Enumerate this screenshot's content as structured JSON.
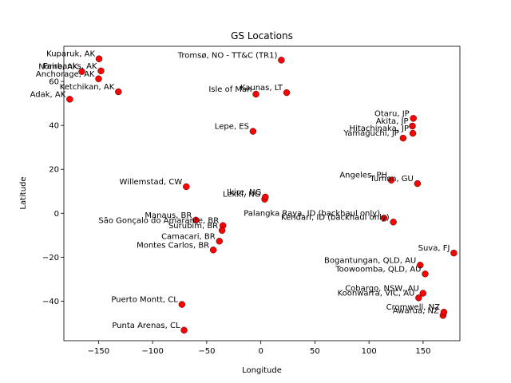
{
  "chart_data": {
    "type": "scatter",
    "title": "GS Locations",
    "xlabel": "Longitude",
    "ylabel": "Latitude",
    "xlim": [
      -182,
      184
    ],
    "ylim": [
      -58,
      76
    ],
    "xticks": [
      -150,
      -100,
      -50,
      0,
      50,
      100,
      150
    ],
    "xtick_labels": [
      "−150",
      "−100",
      "−50",
      "0",
      "50",
      "100",
      "150"
    ],
    "yticks": [
      -40,
      -20,
      0,
      20,
      40,
      60
    ],
    "ytick_labels": [
      "−40",
      "−20",
      "0",
      "20",
      "40",
      "60"
    ],
    "grid": false,
    "marker_color": "#ff0000",
    "marker_edge": "#000000",
    "points": [
      {
        "label": "Kuparuk, AK",
        "x": -149.5,
        "y": 70.3
      },
      {
        "label": "Fairbanks, AK",
        "x": -147.7,
        "y": 64.8
      },
      {
        "label": "Nome, AK",
        "x": -165.4,
        "y": 64.5
      },
      {
        "label": "Anchorage, AK",
        "x": -149.9,
        "y": 61.2
      },
      {
        "label": "Ketchikan, AK",
        "x": -131.6,
        "y": 55.3
      },
      {
        "label": "Tromsø, NO - TT&C (TR1)",
        "x": 19.0,
        "y": 69.7
      },
      {
        "label": "Isle of Man",
        "x": -4.5,
        "y": 54.2
      },
      {
        "label": "Kaunas, LT",
        "x": 23.9,
        "y": 54.9
      },
      {
        "label": "Adak, AK",
        "x": -176.6,
        "y": 51.9
      },
      {
        "label": "Otaru, JP",
        "x": 141.0,
        "y": 43.2
      },
      {
        "label": "Akita, JP",
        "x": 140.1,
        "y": 39.7
      },
      {
        "label": "Hitachinaka, JP",
        "x": 140.5,
        "y": 36.4
      },
      {
        "label": "Yamaguchi, JP",
        "x": 131.5,
        "y": 34.2
      },
      {
        "label": "Lepe, ES",
        "x": -7.2,
        "y": 37.3
      },
      {
        "label": "Angeles, PH",
        "x": 120.6,
        "y": 15.1
      },
      {
        "label": "Tumon, GU",
        "x": 144.8,
        "y": 13.5
      },
      {
        "label": "Willemstad, CW",
        "x": -68.9,
        "y": 12.1
      },
      {
        "label": "Lekki, NG",
        "x": 3.6,
        "y": 6.4
      },
      {
        "label": "Ikire, NG",
        "x": 4.2,
        "y": 7.4
      },
      {
        "label": "Manaus, BR",
        "x": -60.0,
        "y": -3.1
      },
      {
        "label": "Palangka Raya, ID (backhaul only)",
        "x": 113.9,
        "y": -2.2
      },
      {
        "label": "Kendari, ID (backhaul only)",
        "x": 122.5,
        "y": -4.0
      },
      {
        "label": "São Gonçalo do Amarante, BR",
        "x": -35.0,
        "y": -5.6
      },
      {
        "label": "Surubim, BR",
        "x": -35.8,
        "y": -7.8
      },
      {
        "label": "Camacari, BR",
        "x": -38.3,
        "y": -12.7
      },
      {
        "label": "Montes Carlos, BR",
        "x": -43.9,
        "y": -16.7
      },
      {
        "label": "Suva, FJ",
        "x": 178.4,
        "y": -18.1
      },
      {
        "label": "Toowoomba, QLD, AU",
        "x": 151.9,
        "y": -27.6
      },
      {
        "label": "Bogantungan, QLD, AU",
        "x": 147.3,
        "y": -23.6
      },
      {
        "label": "Cobargo, NSW, AU",
        "x": 149.9,
        "y": -36.4
      },
      {
        "label": "Punta Arenas, CL",
        "x": -70.9,
        "y": -53.2
      },
      {
        "label": "Puerto Montt, CL",
        "x": -72.9,
        "y": -41.5
      },
      {
        "label": "Awarua, NZ",
        "x": 168.4,
        "y": -46.5
      },
      {
        "label": "Cromwell, NZ",
        "x": 169.2,
        "y": -45.0
      },
      {
        "label": "Koonwarra, VIC, AU",
        "x": 145.9,
        "y": -38.5
      }
    ]
  }
}
